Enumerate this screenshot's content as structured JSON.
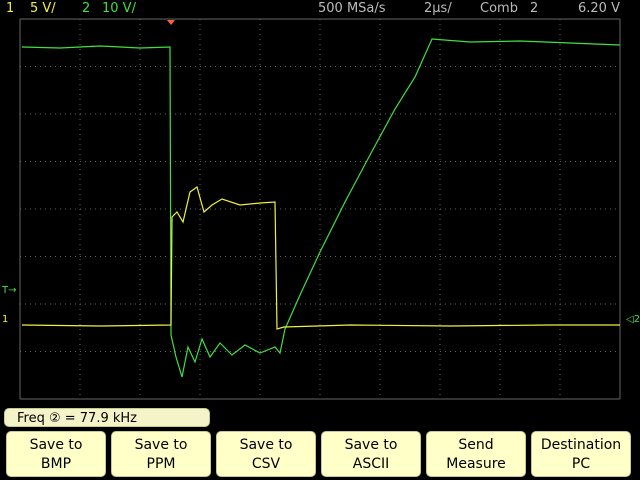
{
  "status_bar": {
    "ch1_label": "1",
    "ch1_scale": "5 V/",
    "ch2_label": "2",
    "ch2_scale": "10 V/",
    "sample_rate": "500 MSa/s",
    "timebase": "2µs/",
    "trigger_mode": "Comb",
    "trigger_source": "2",
    "trigger_level": "6.20 V"
  },
  "measurement": "Freq ② = 77.9 kHz",
  "softkeys": [
    {
      "line1": "Save to",
      "line2": "BMP"
    },
    {
      "line1": "Save to",
      "line2": "PPM"
    },
    {
      "line1": "Save to",
      "line2": "CSV"
    },
    {
      "line1": "Save to",
      "line2": "ASCII"
    },
    {
      "line1": "Send",
      "line2": "Measure"
    },
    {
      "line1": "Destination",
      "line2": "PC"
    }
  ]
}
